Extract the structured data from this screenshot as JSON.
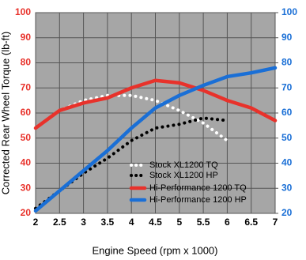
{
  "chart_data": {
    "type": "line",
    "x_label": "Engine Speed (rpm x 1000)",
    "y_label": "Corrected Rear Wheel Torque (lb-ft)",
    "x": [
      2,
      2.5,
      3,
      3.5,
      4,
      4.5,
      5,
      5.5,
      6,
      6.5,
      7
    ],
    "xlim": [
      2,
      7
    ],
    "xticks": [
      2,
      2.5,
      3,
      3.5,
      4,
      4.5,
      5,
      5.5,
      6,
      6.5,
      7
    ],
    "ylim": [
      20,
      100
    ],
    "yticks": [
      20,
      30,
      40,
      50,
      60,
      70,
      80,
      90,
      100
    ],
    "y_color": "#e8322b",
    "y2lim": [
      20,
      100
    ],
    "y2ticks": [
      20,
      30,
      40,
      50,
      60,
      70,
      80,
      90,
      100
    ],
    "y2_color": "#1a6fd6",
    "grid": true,
    "legend": "lower right",
    "series": [
      {
        "name": "Stock XL1200 TQ",
        "color": "#ffffff",
        "style": "dotted",
        "values": [
          null,
          61,
          65,
          67,
          67,
          65,
          61,
          56,
          49,
          null,
          null
        ]
      },
      {
        "name": "Stock XL1200 HP",
        "color": "#000000",
        "style": "dotted",
        "axis": "y2",
        "values": [
          22,
          29,
          36,
          42,
          49,
          54,
          55.5,
          58,
          57,
          null,
          null
        ]
      },
      {
        "name": "Hi-Performance 1200 TQ",
        "color": "#e8322b",
        "style": "solid",
        "values": [
          54,
          61,
          64,
          66,
          70,
          73,
          72,
          69,
          65,
          62,
          57
        ]
      },
      {
        "name": "Hi-Performance 1200 HP",
        "color": "#1a6fd6",
        "style": "solid",
        "axis": "y2",
        "values": [
          21,
          29,
          37,
          45,
          54,
          62,
          67,
          71,
          74.5,
          76,
          78
        ]
      }
    ]
  }
}
